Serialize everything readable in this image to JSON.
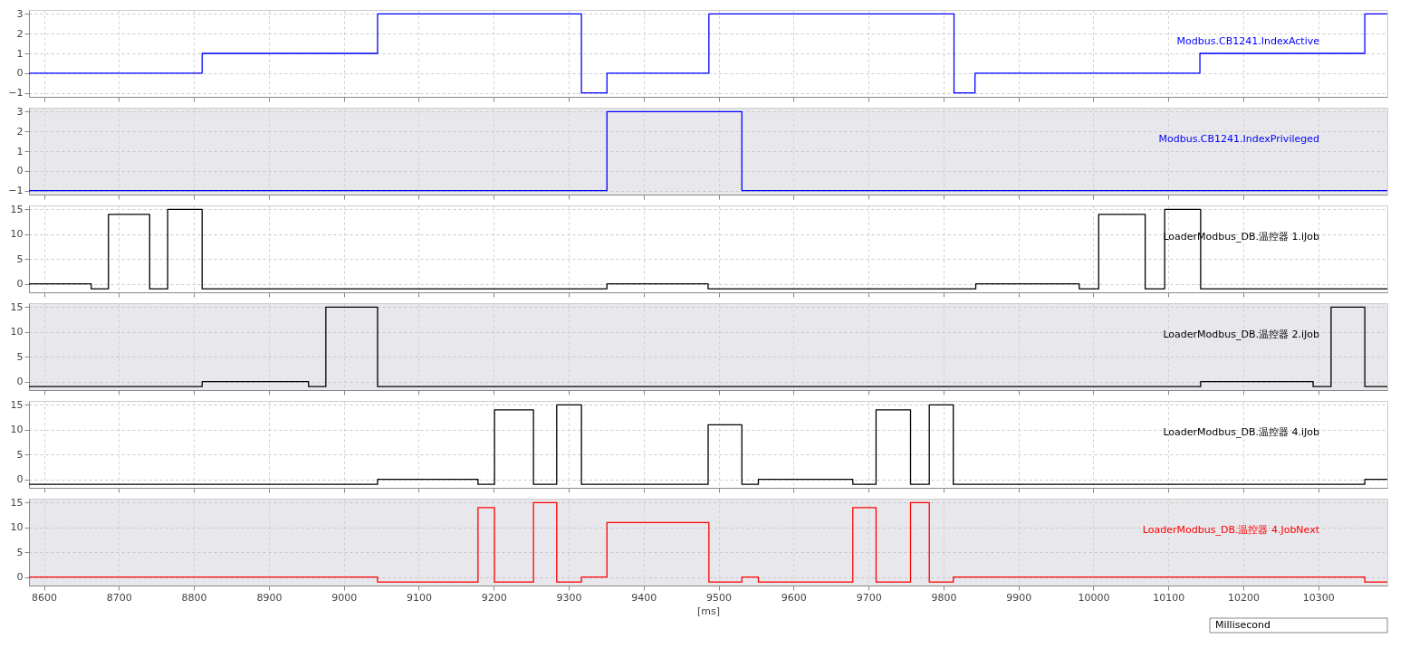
{
  "chart_data": [
    {
      "type": "step",
      "xlim": [
        8580,
        10392
      ],
      "xticks": [
        8600,
        8700,
        8800,
        8900,
        9000,
        9100,
        9200,
        9300,
        9400,
        9500,
        9600,
        9700,
        9800,
        9900,
        10000,
        10100,
        10200,
        10300
      ],
      "ylim": [
        -1.2,
        3.2
      ],
      "yticks": [
        -1,
        0,
        1,
        2,
        3
      ],
      "grid": true,
      "tick_labels": "y",
      "series": [
        {
          "name": "Modbus.CB1241.IndexActive",
          "color": "#0000ff",
          "x": [
            8580,
            8811,
            9045,
            9317,
            9351,
            9487,
            9814,
            9842,
            10142,
            10362,
            10392
          ],
          "values": [
            0,
            1,
            3,
            -1,
            0,
            3,
            -1,
            0,
            1,
            3,
            3
          ]
        }
      ]
    },
    {
      "type": "step",
      "xlim": [
        8580,
        10392
      ],
      "xticks": [
        8600,
        8700,
        8800,
        8900,
        9000,
        9100,
        9200,
        9300,
        9400,
        9500,
        9600,
        9700,
        9800,
        9900,
        10000,
        10100,
        10200,
        10300
      ],
      "ylim": [
        -1.2,
        3.2
      ],
      "yticks": [
        -1,
        0,
        1,
        2,
        3
      ],
      "grid": true,
      "tick_labels": "y",
      "series": [
        {
          "name": "Modbus.CB1241.IndexPrivileged",
          "color": "#0000ff",
          "x": [
            8580,
            9351,
            9531,
            10392
          ],
          "values": [
            -1,
            3,
            -1,
            -1
          ]
        }
      ]
    },
    {
      "type": "step",
      "xlim": [
        8580,
        10392
      ],
      "xticks": [
        8600,
        8700,
        8800,
        8900,
        9000,
        9100,
        9200,
        9300,
        9400,
        9500,
        9600,
        9700,
        9800,
        9900,
        10000,
        10100,
        10200,
        10300
      ],
      "ylim": [
        -1.7,
        15.8
      ],
      "yticks": [
        0,
        5,
        10,
        15
      ],
      "grid": true,
      "tick_labels": "y",
      "series": [
        {
          "name": "LoaderModbus_DB.温控器 1.iJob",
          "color": "#000000",
          "x": [
            8580,
            8663,
            8686,
            8741,
            8765,
            8811,
            9351,
            9486,
            9843,
            9981,
            10007,
            10069,
            10095,
            10143,
            10392
          ],
          "values": [
            0,
            -1,
            14,
            -1,
            15,
            -1,
            0,
            -1,
            0,
            -1,
            14,
            -1,
            15,
            -1,
            -1
          ]
        }
      ]
    },
    {
      "type": "step",
      "xlim": [
        8580,
        10392
      ],
      "xticks": [
        8600,
        8700,
        8800,
        8900,
        9000,
        9100,
        9200,
        9300,
        9400,
        9500,
        9600,
        9700,
        9800,
        9900,
        10000,
        10100,
        10200,
        10300
      ],
      "ylim": [
        -1.7,
        15.8
      ],
      "yticks": [
        0,
        5,
        10,
        15
      ],
      "grid": true,
      "tick_labels": "y",
      "series": [
        {
          "name": "LoaderModbus_DB.温控器 2.iJob",
          "color": "#000000",
          "x": [
            8580,
            8811,
            8953,
            8976,
            9045,
            10143,
            10293,
            10317,
            10362,
            10392
          ],
          "values": [
            -1,
            0,
            -1,
            15,
            -1,
            0,
            -1,
            15,
            -1,
            -1
          ]
        }
      ]
    },
    {
      "type": "step",
      "xlim": [
        8580,
        10392
      ],
      "xticks": [
        8600,
        8700,
        8800,
        8900,
        9000,
        9100,
        9200,
        9300,
        9400,
        9500,
        9600,
        9700,
        9800,
        9900,
        10000,
        10100,
        10200,
        10300
      ],
      "ylim": [
        -1.7,
        15.8
      ],
      "yticks": [
        0,
        5,
        10,
        15
      ],
      "grid": true,
      "tick_labels": "y",
      "series": [
        {
          "name": "LoaderModbus_DB.温控器 4.iJob",
          "color": "#000000",
          "x": [
            8580,
            9045,
            9179,
            9201,
            9253,
            9284,
            9317,
            9486,
            9531,
            9553,
            9679,
            9710,
            9756,
            9781,
            9813,
            10362,
            10392
          ],
          "values": [
            -1,
            0,
            -1,
            14,
            -1,
            15,
            -1,
            11,
            -1,
            0,
            -1,
            14,
            -1,
            15,
            -1,
            0,
            0
          ]
        }
      ]
    },
    {
      "type": "step",
      "xlim": [
        8580,
        10392
      ],
      "xticks": [
        8600,
        8700,
        8800,
        8900,
        9000,
        9100,
        9200,
        9300,
        9400,
        9500,
        9600,
        9700,
        9800,
        9900,
        10000,
        10100,
        10200,
        10300
      ],
      "ylim": [
        -1.7,
        15.8
      ],
      "yticks": [
        0,
        5,
        10,
        15
      ],
      "grid": true,
      "xlabel": "[ms]",
      "annotations": [
        "Millisecond"
      ],
      "series": [
        {
          "name": "LoaderModbus_DB.温控器 4.JobNext",
          "color": "#ff0000",
          "x": [
            8580,
            9045,
            9179,
            9201,
            9253,
            9284,
            9317,
            9351,
            9487,
            9531,
            9553,
            9679,
            9710,
            9756,
            9781,
            9813,
            10362,
            10392
          ],
          "values": [
            0,
            -1,
            14,
            -1,
            15,
            -1,
            0,
            11,
            -1,
            0,
            -1,
            14,
            -1,
            15,
            -1,
            0,
            -1,
            -1
          ]
        }
      ]
    }
  ]
}
